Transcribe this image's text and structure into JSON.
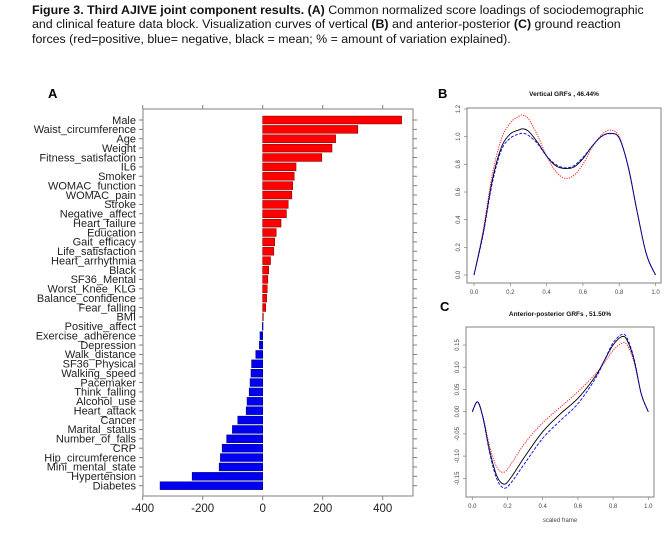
{
  "caption": {
    "bold_lead": "Figure 3. Third AJIVE joint component results. (A)",
    "text_1": " Common normalized score loadings of sociodemographic and clinical feature data block. Visualization curves of vertical ",
    "b_ref": "(B)",
    "text_2": " and anterior-posterior ",
    "c_ref": "(C)",
    "text_3": " ground reaction forces (red=positive, blue= negative, black = mean; % = amount of variation explained)."
  },
  "panels": {
    "a": "A",
    "b": "B",
    "c": "C"
  },
  "colors": {
    "positive": "#ff0000",
    "negative": "#0000ee",
    "mean": "#000000",
    "frame": "#808080"
  },
  "chart_data": [
    {
      "id": "A",
      "type": "bar",
      "orientation": "horizontal",
      "title": "",
      "xlabel": "",
      "ylabel": "",
      "xlim": [
        -400,
        500
      ],
      "xticks": [
        -400,
        -200,
        0,
        200,
        400
      ],
      "xtick_labels": [
        "-400",
        "-200",
        "0",
        "200",
        "400"
      ],
      "categories": [
        "Male",
        "Waist_circumference",
        "Age",
        "Weight",
        "Fitness_satisfaction",
        "IL6",
        "Smoker",
        "WOMAC_function",
        "WOMAC_pain",
        "Stroke",
        "Negative_affect",
        "Heart_failure",
        "Education",
        "Gait_efficacy",
        "Life_satisfaction",
        "Heart_arrhythmia",
        "Black",
        "SF36_Mental",
        "Worst_Knee_KLG",
        "Balance_confidence",
        "Fear_falling",
        "BMI",
        "Positive_affect",
        "Exercise_adherence",
        "Depression",
        "Walk_distance",
        "SF36_Physical",
        "Walking_speed",
        "Pacemaker",
        "Think_falling",
        "Alcohol_use",
        "Heart_attack",
        "Cancer",
        "Marital_status",
        "Number_of_falls",
        "CRP",
        "Hip_circumference",
        "Mini_mental_state",
        "Hypertension",
        "Diabetes"
      ],
      "values": [
        463,
        317,
        243,
        231,
        197,
        111,
        105,
        100,
        97,
        85,
        79,
        61,
        45,
        40,
        37,
        26,
        20,
        17,
        15,
        13,
        10,
        1,
        -1,
        -9,
        -11,
        -23,
        -37,
        -39,
        -42,
        -45,
        -52,
        -55,
        -83,
        -101,
        -120,
        -135,
        -141,
        -145,
        -235,
        -342
      ],
      "grid": false
    },
    {
      "id": "B",
      "type": "line",
      "title": "Vertical GRFs , 46.44%",
      "xlabel": "",
      "ylabel": "",
      "xlim": [
        0,
        1
      ],
      "ylim": [
        0,
        1.2
      ],
      "xticks": [
        "0.0",
        "0.2",
        "0.4",
        "0.6",
        "0.8",
        "1.0"
      ],
      "yticks": [
        "0.0",
        "0.2",
        "0.4",
        "0.6",
        "0.8",
        "1.0",
        "1.2"
      ],
      "x": [
        0.0,
        0.05,
        0.1,
        0.15,
        0.2,
        0.25,
        0.27,
        0.3,
        0.35,
        0.4,
        0.45,
        0.5,
        0.55,
        0.6,
        0.65,
        0.7,
        0.75,
        0.8,
        0.85,
        0.9,
        0.95,
        1.0
      ],
      "series": [
        {
          "name": "positive",
          "style": "dotted",
          "values": [
            0.0,
            0.32,
            0.72,
            0.98,
            1.1,
            1.15,
            1.155,
            1.13,
            1.01,
            0.86,
            0.75,
            0.7,
            0.72,
            0.8,
            0.92,
            1.01,
            1.048,
            1.0,
            0.78,
            0.45,
            0.15,
            0.0
          ]
        },
        {
          "name": "mean",
          "style": "solid",
          "values": [
            0.0,
            0.3,
            0.68,
            0.92,
            1.02,
            1.05,
            1.057,
            1.04,
            0.96,
            0.86,
            0.79,
            0.77,
            0.78,
            0.84,
            0.93,
            1.0,
            1.024,
            0.99,
            0.78,
            0.45,
            0.15,
            0.0
          ]
        },
        {
          "name": "negative",
          "style": "dashed",
          "values": [
            0.0,
            0.29,
            0.66,
            0.9,
            0.99,
            1.02,
            1.024,
            1.01,
            0.95,
            0.86,
            0.8,
            0.775,
            0.79,
            0.85,
            0.93,
            1.0,
            1.022,
            0.99,
            0.78,
            0.45,
            0.15,
            0.0
          ]
        }
      ]
    },
    {
      "id": "C",
      "type": "line",
      "title": "Anterior-posterior GRFs , 51.50%",
      "xlabel": "scaled frame",
      "ylabel": "",
      "xlim": [
        0,
        1
      ],
      "ylim": [
        -0.18,
        0.18
      ],
      "xticks": [
        "0.0",
        "0.2",
        "0.4",
        "0.6",
        "0.8",
        "1.0"
      ],
      "yticks": [
        "-0.15",
        "-0.10",
        "-0.05",
        "0.00",
        "0.05",
        "0.10",
        "0.15"
      ],
      "x": [
        0.0,
        0.03,
        0.06,
        0.1,
        0.14,
        0.18,
        0.22,
        0.3,
        0.4,
        0.5,
        0.6,
        0.7,
        0.75,
        0.8,
        0.85,
        0.88,
        0.92,
        0.96,
        1.0
      ],
      "series": [
        {
          "name": "positive",
          "style": "dotted",
          "values": [
            0.0,
            0.022,
            -0.01,
            -0.08,
            -0.125,
            -0.136,
            -0.118,
            -0.07,
            -0.025,
            0.01,
            0.045,
            0.085,
            0.11,
            0.138,
            0.154,
            0.15,
            0.11,
            0.04,
            0.0
          ]
        },
        {
          "name": "mean",
          "style": "solid",
          "values": [
            0.0,
            0.022,
            -0.012,
            -0.09,
            -0.145,
            -0.163,
            -0.148,
            -0.1,
            -0.045,
            -0.005,
            0.03,
            0.08,
            0.115,
            0.15,
            0.169,
            0.16,
            0.115,
            0.04,
            0.0
          ]
        },
        {
          "name": "negative",
          "style": "dashed",
          "values": [
            0.0,
            0.022,
            -0.013,
            -0.095,
            -0.152,
            -0.172,
            -0.16,
            -0.115,
            -0.06,
            -0.02,
            0.018,
            0.075,
            0.115,
            0.155,
            0.174,
            0.165,
            0.118,
            0.04,
            0.0
          ]
        }
      ]
    }
  ]
}
